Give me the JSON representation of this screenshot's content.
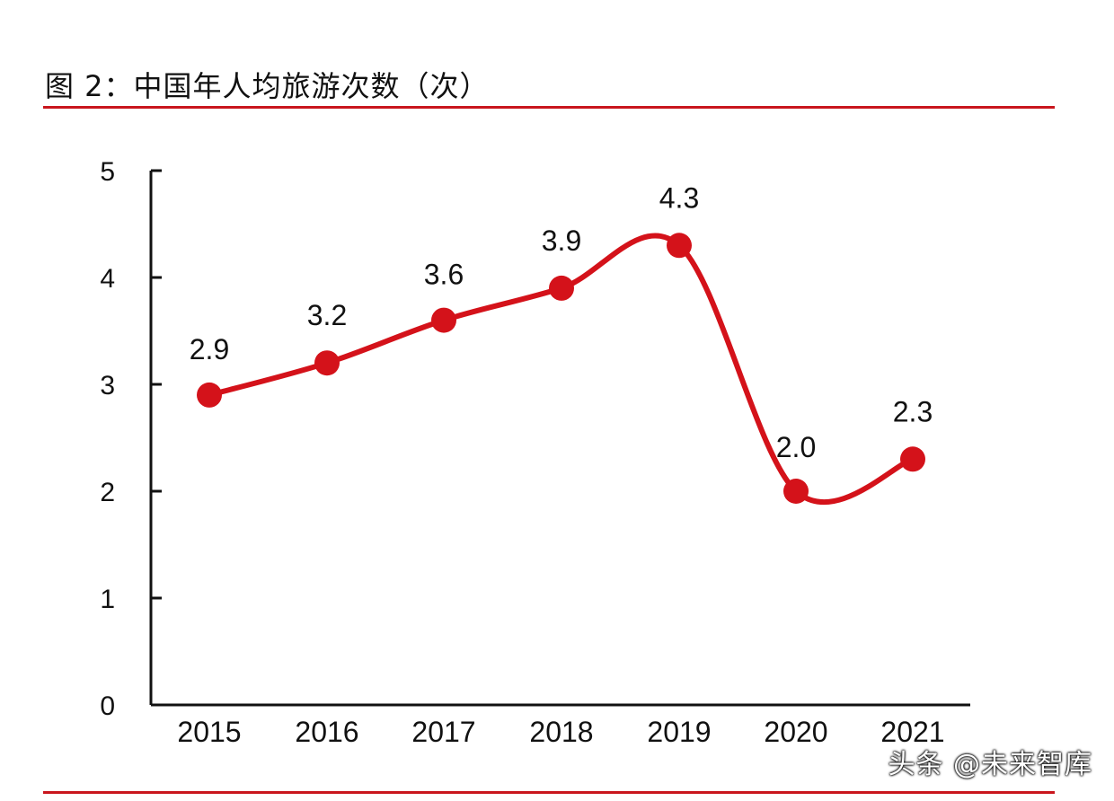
{
  "header": {
    "title": "图 2：中国年人均旅游次数（次）"
  },
  "watermark": "头条 @未来智库",
  "colors": {
    "accent": "#d4121a",
    "rule": "#c9161d",
    "text": "#111111"
  },
  "chart_data": {
    "type": "line",
    "title": "图 2：中国年人均旅游次数（次）",
    "xlabel": "",
    "ylabel": "",
    "categories": [
      "2015",
      "2016",
      "2017",
      "2018",
      "2019",
      "2020",
      "2021"
    ],
    "series": [
      {
        "values": [
          2.9,
          3.2,
          3.6,
          3.9,
          4.3,
          2.0,
          2.3
        ],
        "data_labels": [
          "2.9",
          "3.2",
          "3.6",
          "3.9",
          "4.3",
          "2.0",
          "2.3"
        ]
      }
    ],
    "ylim": [
      0,
      5
    ],
    "yticks": [
      0,
      1,
      2,
      3,
      4,
      5
    ],
    "ytick_labels": [
      "0",
      "1",
      "2",
      "3",
      "4",
      "5"
    ],
    "grid": false,
    "legend": "none",
    "smooth": true
  }
}
